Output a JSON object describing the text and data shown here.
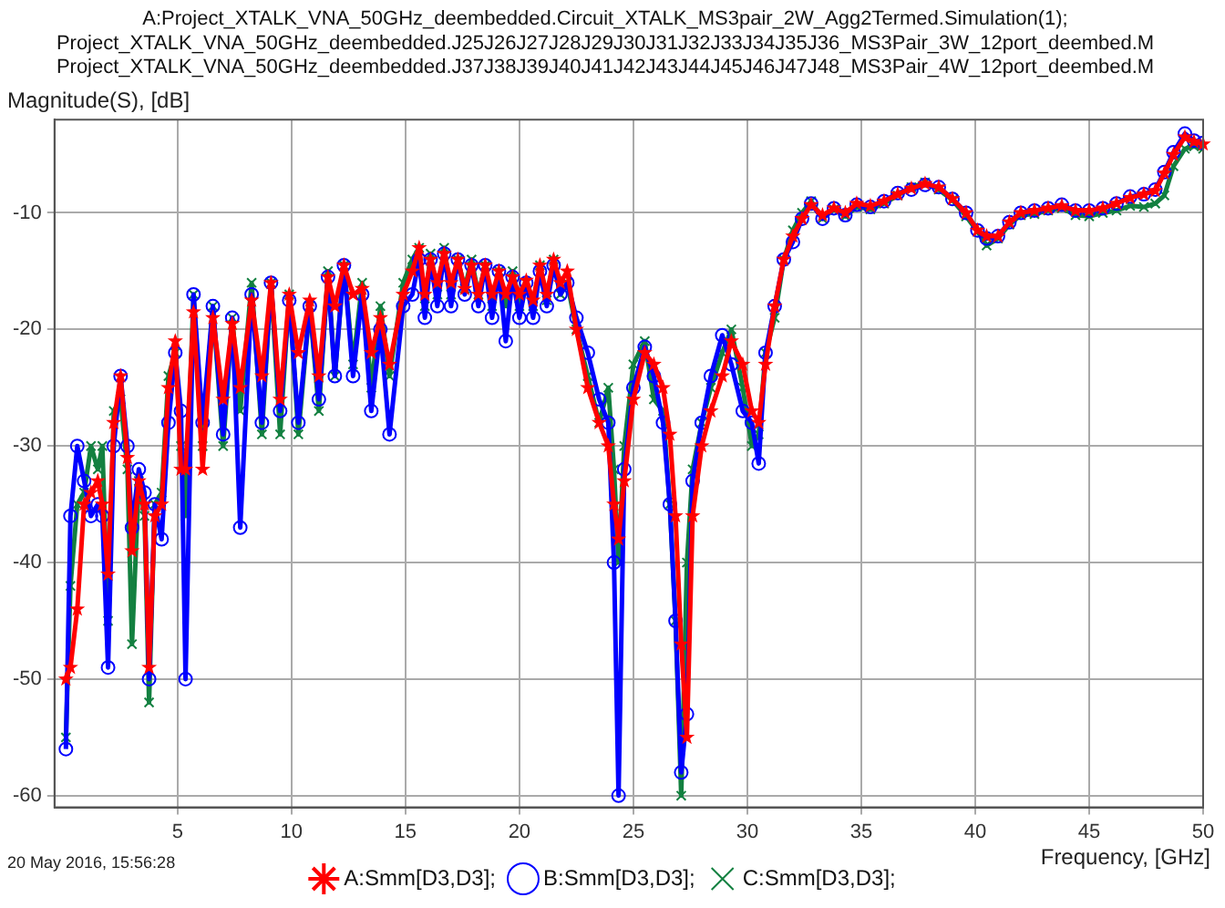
{
  "chart_data": {
    "type": "line",
    "title": "A:Project_XTALK_VNA_50GHz_deembedded.Circuit_XTALK_MS3pair_2W_Agg2Termed.Simulation(1);\nProject_XTALK_VNA_50GHz_deembedded.J25J26J27J28J29J30J31J32J33J34J35J36_MS3Pair_3W_12port_deembed.M\nProject_XTALK_VNA_50GHz_deembedded.J37J38J39J40J41J42J43J44J45J46J47J48_MS3Pair_4W_12port_deembed.M",
    "xlabel": "Frequency, [GHz]",
    "ylabel": "Magnitude(S), [dB]",
    "annotations": [
      "20 May 2016, 15:56:28"
    ],
    "x": [
      0.1,
      0.3,
      0.6,
      0.9,
      1.2,
      1.5,
      1.7,
      1.95,
      2.2,
      2.5,
      2.8,
      3.0,
      3.3,
      3.55,
      3.75,
      4.0,
      4.3,
      4.6,
      4.9,
      5.15,
      5.35,
      5.7,
      6.1,
      6.55,
      7.0,
      7.4,
      7.75,
      8.25,
      8.7,
      9.1,
      9.5,
      9.9,
      10.3,
      10.8,
      11.2,
      11.6,
      11.9,
      12.3,
      12.7,
      13.1,
      13.5,
      13.9,
      14.3,
      14.9,
      15.3,
      15.6,
      15.85,
      16.1,
      16.4,
      16.7,
      17.0,
      17.3,
      17.6,
      17.9,
      18.2,
      18.5,
      18.8,
      19.1,
      19.4,
      19.7,
      20.0,
      20.3,
      20.6,
      20.9,
      21.2,
      21.5,
      21.8,
      22.1,
      22.5,
      23.0,
      23.5,
      23.9,
      24.15,
      24.35,
      24.6,
      25.0,
      25.5,
      25.9,
      26.3,
      26.6,
      26.85,
      27.1,
      27.35,
      27.6,
      28.0,
      28.4,
      28.9,
      29.3,
      29.8,
      30.2,
      30.5,
      30.8,
      31.2,
      31.6,
      32.0,
      32.4,
      32.8,
      33.3,
      33.8,
      34.3,
      34.8,
      35.4,
      36.0,
      36.6,
      37.2,
      37.8,
      38.4,
      39.0,
      39.6,
      40.1,
      40.5,
      41.0,
      41.5,
      42.0,
      42.6,
      43.2,
      43.8,
      44.4,
      45.0,
      45.6,
      46.2,
      46.8,
      47.4,
      47.9,
      48.3,
      48.7,
      49.2,
      49.6,
      50.0
    ],
    "series": [
      {
        "name": "A:Smm[D3,D3];",
        "color": "#ff0000",
        "marker": "star",
        "values": [
          -50,
          -49,
          -44,
          -35,
          -34,
          -33,
          -35,
          -41,
          -28,
          -24,
          -31,
          -39,
          -33,
          -35,
          -49,
          -36,
          -35,
          -25,
          -21,
          -32,
          -32,
          -18.5,
          -32,
          -19,
          -26,
          -19.5,
          -25,
          -17.5,
          -24,
          -16,
          -26,
          -17,
          -22,
          -17.5,
          -24,
          -15.5,
          -18,
          -14.5,
          -17,
          -16.5,
          -22,
          -19,
          -23,
          -17,
          -15,
          -13,
          -17,
          -14,
          -16,
          -13.5,
          -16,
          -14,
          -16.5,
          -14.5,
          -17,
          -14.5,
          -17,
          -15,
          -17,
          -15.5,
          -17,
          -15.8,
          -17.5,
          -14.5,
          -17,
          -14,
          -16,
          -15,
          -20,
          -25,
          -28,
          -30,
          -35,
          -38,
          -33,
          -26,
          -22,
          -23,
          -25,
          -29,
          -36,
          -47,
          -55,
          -36,
          -30,
          -27,
          -24,
          -21,
          -23,
          -27,
          -28,
          -23,
          -18,
          -14,
          -12,
          -10.5,
          -9.3,
          -10.2,
          -9.6,
          -10.0,
          -9.2,
          -9.4,
          -9.0,
          -8.4,
          -7.9,
          -7.5,
          -7.8,
          -8.8,
          -10.0,
          -11.5,
          -12.0,
          -12.0,
          -10.8,
          -10.0,
          -9.8,
          -9.6,
          -9.4,
          -9.8,
          -9.8,
          -9.6,
          -9.2,
          -8.7,
          -8.4,
          -8.1,
          -6.6,
          -5.0,
          -3.5,
          -3.9,
          -4.1
        ]
      },
      {
        "name": "B:Smm[D3,D3];",
        "color": "#0000ff",
        "marker": "circle",
        "values": [
          -56,
          -36,
          -30,
          -33,
          -36,
          -35,
          -36,
          -49,
          -30,
          -24,
          -30,
          -37,
          -32,
          -34,
          -50,
          -35,
          -38,
          -28,
          -22,
          -27,
          -50,
          -17,
          -28,
          -18,
          -29,
          -19,
          -37,
          -17,
          -28,
          -16,
          -27,
          -17.5,
          -28,
          -18,
          -26,
          -15.5,
          -24,
          -14.5,
          -24,
          -17,
          -27,
          -20,
          -29,
          -18,
          -17,
          -14,
          -19,
          -14,
          -18,
          -13.5,
          -18,
          -14,
          -17,
          -14.5,
          -18,
          -14.5,
          -19,
          -15,
          -21,
          -15.5,
          -19,
          -16,
          -19,
          -15,
          -18,
          -14.5,
          -17,
          -16,
          -19,
          -22,
          -26,
          -28,
          -40,
          -60,
          -32,
          -25,
          -21.5,
          -24,
          -28,
          -35,
          -45,
          -58,
          -53,
          -33,
          -28,
          -24,
          -20.5,
          -23,
          -27,
          -28,
          -31.5,
          -22,
          -18,
          -14,
          -12.5,
          -10.5,
          -9.2,
          -10.5,
          -9.6,
          -10.2,
          -9.3,
          -9.5,
          -9.0,
          -8.3,
          -8.0,
          -7.6,
          -7.8,
          -8.8,
          -10.0,
          -11.5,
          -12.2,
          -12.0,
          -10.8,
          -10.0,
          -9.8,
          -9.6,
          -9.3,
          -9.8,
          -9.8,
          -9.6,
          -9.2,
          -8.6,
          -8.4,
          -8.0,
          -6.5,
          -4.8,
          -3.2,
          -3.8,
          -4.0
        ]
      },
      {
        "name": "C:Smm[D3,D3];",
        "color": "#138040",
        "marker": "cross",
        "values": [
          -55,
          -42,
          -35,
          -34,
          -30,
          -32,
          -30,
          -45,
          -27,
          -26,
          -32,
          -47,
          -33,
          -36,
          -52,
          -35,
          -34,
          -24,
          -22,
          -30,
          -36,
          -17,
          -30,
          -18,
          -30,
          -19,
          -27,
          -16,
          -29,
          -16,
          -29,
          -17,
          -29,
          -18,
          -27,
          -15,
          -24,
          -14.5,
          -23,
          -16,
          -25,
          -18,
          -24,
          -16,
          -14,
          -13,
          -18,
          -13.5,
          -17,
          -13,
          -17,
          -14,
          -16.5,
          -14,
          -17,
          -14.5,
          -18,
          -15,
          -18,
          -15,
          -18,
          -16,
          -18,
          -14.5,
          -17.5,
          -14,
          -17,
          -16,
          -20,
          -24,
          -28,
          -25,
          -32,
          -40,
          -30,
          -23,
          -21,
          -26,
          -27,
          -35,
          -45,
          -60,
          -40,
          -32,
          -28,
          -25,
          -22,
          -20,
          -25,
          -30,
          -29,
          -22,
          -19,
          -14,
          -11.5,
          -10,
          -9,
          -10.5,
          -9.7,
          -10.3,
          -9.5,
          -9.7,
          -9.2,
          -8.5,
          -7.8,
          -7.4,
          -8.0,
          -8.9,
          -10.3,
          -11.6,
          -12.8,
          -12.2,
          -11.0,
          -10.2,
          -10.1,
          -9.8,
          -9.6,
          -10.2,
          -10.3,
          -10.0,
          -9.8,
          -9.4,
          -9.5,
          -9.2,
          -8.5,
          -6.0,
          -4.5,
          -4.3,
          -4.5
        ]
      }
    ],
    "xlim": [
      -0.4,
      50
    ],
    "ylim": [
      -61,
      -2
    ],
    "xticks": [
      5,
      10,
      15,
      20,
      25,
      30,
      35,
      40,
      45,
      50
    ],
    "yticks": [
      -60,
      -50,
      -40,
      -30,
      -20,
      -10
    ],
    "grid": true,
    "legend": "bottom",
    "line_style": "solid"
  }
}
